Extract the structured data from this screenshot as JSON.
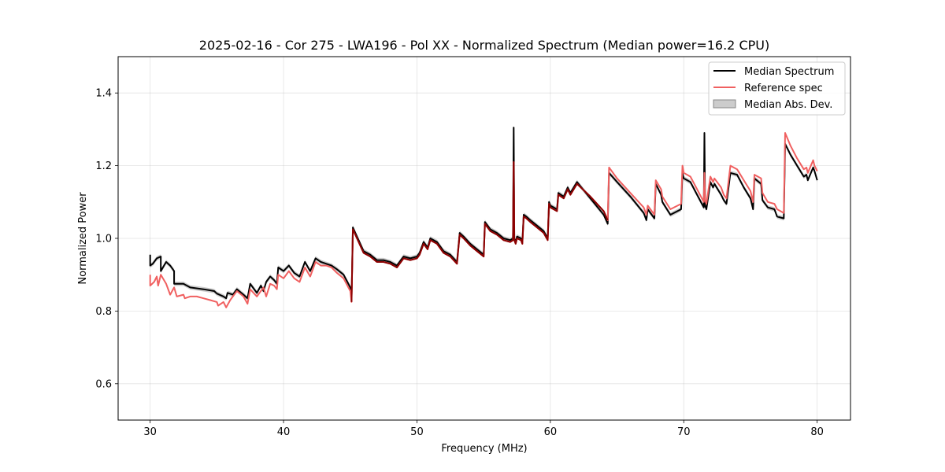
{
  "chart_data": {
    "type": "line",
    "title": "2025-02-16 - Cor 275 - LWA196 - Pol XX - Normalized Spectrum (Median power=16.2 CPU)",
    "xlabel": "Frequency (MHz)",
    "ylabel": "Normalized Power",
    "xlim": [
      27.6,
      82.5
    ],
    "ylim": [
      0.5,
      1.5
    ],
    "x_ticks": [
      30,
      40,
      50,
      60,
      70,
      80
    ],
    "x_tick_labels": [
      "30",
      "40",
      "50",
      "60",
      "70",
      "80"
    ],
    "y_ticks": [
      0.6,
      0.8,
      1.0,
      1.2,
      1.4
    ],
    "y_tick_labels": [
      "0.6",
      "0.8",
      "1.0",
      "1.2",
      "1.4"
    ],
    "grid": true,
    "legend_position": "top-right",
    "legend": [
      "Median Spectrum",
      "Reference spec",
      "Median Abs. Dev."
    ],
    "colors": {
      "median": "#000000",
      "reference": "#f06060",
      "mad": "#aaaaaa",
      "overlap": "#8b0000"
    },
    "mad_halfwidth": 0.006,
    "series": [
      {
        "name": "Median Spectrum",
        "x": [
          30.0,
          30.0,
          30.2,
          30.5,
          30.8,
          30.8,
          31.2,
          31.5,
          31.8,
          31.8,
          32.5,
          33.0,
          34.0,
          34.8,
          35.0,
          35.5,
          35.7,
          35.8,
          36.2,
          36.5,
          37.0,
          37.3,
          37.5,
          37.7,
          38.0,
          38.3,
          38.5,
          38.7,
          39.0,
          39.3,
          39.5,
          39.6,
          40.0,
          40.4,
          40.8,
          41.2,
          41.6,
          42.0,
          42.4,
          42.8,
          43.2,
          43.6,
          44.0,
          44.5,
          45.0,
          45.1,
          45.2,
          46.0,
          46.5,
          47.0,
          47.5,
          48.0,
          48.5,
          49.0,
          49.5,
          50.0,
          50.2,
          50.5,
          50.8,
          51.0,
          51.5,
          52.0,
          52.5,
          53.0,
          53.2,
          53.5,
          54.0,
          54.5,
          55.0,
          55.1,
          55.5,
          56.0,
          56.5,
          57.0,
          57.2,
          57.25,
          57.3,
          57.4,
          57.5,
          57.8,
          57.9,
          58.0,
          58.2,
          58.5,
          59.0,
          59.5,
          59.8,
          59.9,
          60.0,
          60.5,
          60.6,
          61.0,
          61.3,
          61.5,
          62.0,
          63.0,
          64.0,
          64.3,
          64.4,
          65.0,
          66.0,
          67.0,
          67.2,
          67.3,
          67.8,
          67.9,
          68.3,
          68.4,
          69.0,
          69.8,
          69.9,
          70.0,
          70.5,
          71.0,
          71.5,
          71.55,
          71.6,
          71.7,
          72.0,
          72.2,
          72.3,
          72.8,
          73.0,
          73.2,
          73.5,
          74.0,
          74.5,
          75.0,
          75.2,
          75.3,
          75.8,
          75.9,
          76.3,
          76.8,
          77.0,
          77.5,
          77.6,
          78.0,
          78.5,
          79.0,
          79.2,
          79.3,
          79.7,
          79.8,
          80.0
        ],
        "values": [
          0.955,
          0.925,
          0.93,
          0.945,
          0.95,
          0.91,
          0.935,
          0.925,
          0.91,
          0.875,
          0.875,
          0.865,
          0.86,
          0.855,
          0.848,
          0.84,
          0.835,
          0.85,
          0.845,
          0.86,
          0.845,
          0.835,
          0.875,
          0.865,
          0.85,
          0.87,
          0.855,
          0.88,
          0.895,
          0.885,
          0.875,
          0.92,
          0.91,
          0.925,
          0.905,
          0.895,
          0.935,
          0.91,
          0.945,
          0.935,
          0.93,
          0.925,
          0.915,
          0.9,
          0.865,
          0.83,
          1.03,
          0.965,
          0.955,
          0.94,
          0.94,
          0.935,
          0.925,
          0.95,
          0.945,
          0.95,
          0.96,
          0.99,
          0.975,
          1.0,
          0.99,
          0.965,
          0.955,
          0.935,
          1.015,
          1.005,
          0.985,
          0.97,
          0.955,
          1.045,
          1.025,
          1.015,
          1.0,
          0.995,
          1.0,
          1.305,
          1.0,
          0.99,
          1.005,
          1.0,
          0.99,
          1.065,
          1.06,
          1.05,
          1.035,
          1.02,
          1.0,
          1.1,
          1.09,
          1.08,
          1.125,
          1.115,
          1.14,
          1.125,
          1.155,
          1.11,
          1.065,
          1.04,
          1.18,
          1.155,
          1.115,
          1.07,
          1.05,
          1.08,
          1.055,
          1.15,
          1.12,
          1.1,
          1.065,
          1.08,
          1.18,
          1.165,
          1.155,
          1.12,
          1.085,
          1.29,
          1.09,
          1.08,
          1.155,
          1.14,
          1.15,
          1.12,
          1.105,
          1.095,
          1.18,
          1.175,
          1.14,
          1.11,
          1.08,
          1.165,
          1.15,
          1.105,
          1.085,
          1.08,
          1.06,
          1.055,
          1.26,
          1.23,
          1.2,
          1.17,
          1.175,
          1.16,
          1.195,
          1.185,
          1.16
        ]
      },
      {
        "name": "Reference spec",
        "x": [
          30.0,
          30.0,
          30.3,
          30.5,
          30.6,
          30.8,
          31.2,
          31.3,
          31.5,
          31.8,
          32.0,
          32.5,
          32.6,
          33.0,
          33.5,
          34.0,
          34.5,
          35.0,
          35.1,
          35.5,
          35.7,
          36.0,
          36.5,
          37.0,
          37.3,
          37.5,
          38.0,
          38.5,
          38.7,
          39.0,
          39.3,
          39.5,
          39.6,
          40.0,
          40.4,
          40.8,
          41.2,
          41.6,
          42.0,
          42.4,
          42.8,
          43.2,
          43.6,
          44.0,
          44.5,
          45.0,
          45.1,
          45.2,
          46.0,
          46.5,
          47.0,
          47.5,
          48.0,
          48.5,
          49.0,
          49.5,
          50.0,
          50.2,
          50.5,
          50.8,
          51.0,
          51.5,
          52.0,
          52.5,
          53.0,
          53.2,
          53.5,
          54.0,
          54.5,
          55.0,
          55.1,
          55.5,
          56.0,
          56.5,
          57.0,
          57.2,
          57.25,
          57.3,
          57.4,
          57.5,
          57.8,
          57.9,
          58.0,
          58.2,
          58.5,
          59.0,
          59.5,
          59.8,
          59.9,
          60.0,
          60.5,
          60.6,
          61.0,
          61.3,
          61.5,
          62.0,
          63.0,
          64.0,
          64.3,
          64.4,
          65.0,
          66.0,
          67.0,
          67.2,
          67.3,
          67.8,
          67.9,
          68.3,
          68.4,
          69.0,
          69.8,
          69.9,
          70.0,
          70.5,
          71.0,
          71.5,
          71.55,
          71.6,
          71.7,
          72.0,
          72.2,
          72.3,
          72.8,
          73.0,
          73.2,
          73.5,
          74.0,
          74.5,
          75.0,
          75.2,
          75.3,
          75.8,
          75.9,
          76.3,
          76.8,
          77.0,
          77.5,
          77.6,
          78.0,
          78.5,
          79.0,
          79.2,
          79.3,
          79.7,
          79.8,
          80.0
        ],
        "values": [
          0.9,
          0.87,
          0.88,
          0.895,
          0.87,
          0.9,
          0.875,
          0.865,
          0.845,
          0.865,
          0.84,
          0.845,
          0.835,
          0.84,
          0.84,
          0.835,
          0.83,
          0.825,
          0.815,
          0.825,
          0.81,
          0.83,
          0.855,
          0.84,
          0.82,
          0.86,
          0.84,
          0.865,
          0.84,
          0.875,
          0.87,
          0.86,
          0.9,
          0.89,
          0.91,
          0.89,
          0.88,
          0.92,
          0.895,
          0.935,
          0.925,
          0.925,
          0.92,
          0.905,
          0.89,
          0.855,
          0.825,
          1.025,
          0.96,
          0.95,
          0.935,
          0.935,
          0.93,
          0.92,
          0.945,
          0.94,
          0.945,
          0.955,
          0.985,
          0.97,
          0.995,
          0.985,
          0.96,
          0.95,
          0.93,
          1.01,
          1.0,
          0.98,
          0.965,
          0.95,
          1.04,
          1.02,
          1.01,
          0.995,
          0.99,
          0.995,
          1.21,
          0.995,
          0.985,
          1.0,
          0.995,
          0.985,
          1.06,
          1.055,
          1.045,
          1.03,
          1.015,
          0.995,
          1.095,
          1.085,
          1.075,
          1.12,
          1.11,
          1.135,
          1.12,
          1.15,
          1.115,
          1.075,
          1.05,
          1.195,
          1.165,
          1.125,
          1.085,
          1.065,
          1.09,
          1.065,
          1.16,
          1.135,
          1.115,
          1.08,
          1.095,
          1.2,
          1.18,
          1.17,
          1.135,
          1.1,
          1.18,
          1.105,
          1.095,
          1.17,
          1.155,
          1.165,
          1.14,
          1.12,
          1.11,
          1.2,
          1.19,
          1.16,
          1.13,
          1.1,
          1.175,
          1.165,
          1.125,
          1.1,
          1.095,
          1.08,
          1.07,
          1.29,
          1.255,
          1.22,
          1.19,
          1.195,
          1.18,
          1.215,
          1.2,
          1.185
        ]
      }
    ]
  }
}
